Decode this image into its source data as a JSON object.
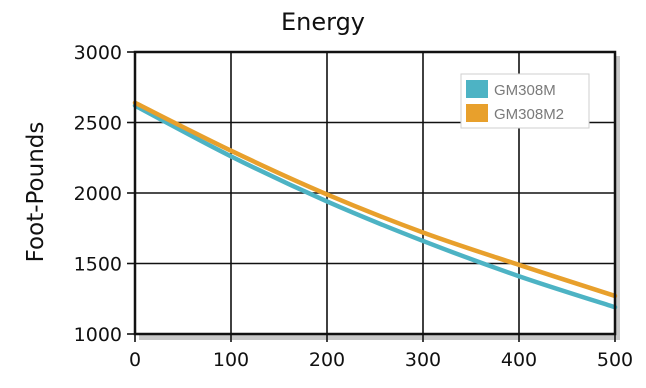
{
  "chart_data": {
    "type": "line",
    "title": "Energy",
    "xlabel": "",
    "ylabel": "Foot-Pounds",
    "x": [
      0,
      100,
      200,
      300,
      400,
      500
    ],
    "xlim": [
      0,
      500
    ],
    "ylim": [
      1000,
      3000
    ],
    "xticks": [
      0,
      100,
      200,
      300,
      400,
      500
    ],
    "yticks": [
      1000,
      1500,
      2000,
      2500,
      3000
    ],
    "grid": true,
    "legend_position": "top-right",
    "series": [
      {
        "name": "GM308M",
        "color": "#4db3c4",
        "values": [
          2620,
          2260,
          1940,
          1660,
          1410,
          1190
        ]
      },
      {
        "name": "GM308M2",
        "color": "#e8a02c",
        "values": [
          2640,
          2300,
          1990,
          1720,
          1490,
          1270
        ]
      }
    ]
  }
}
